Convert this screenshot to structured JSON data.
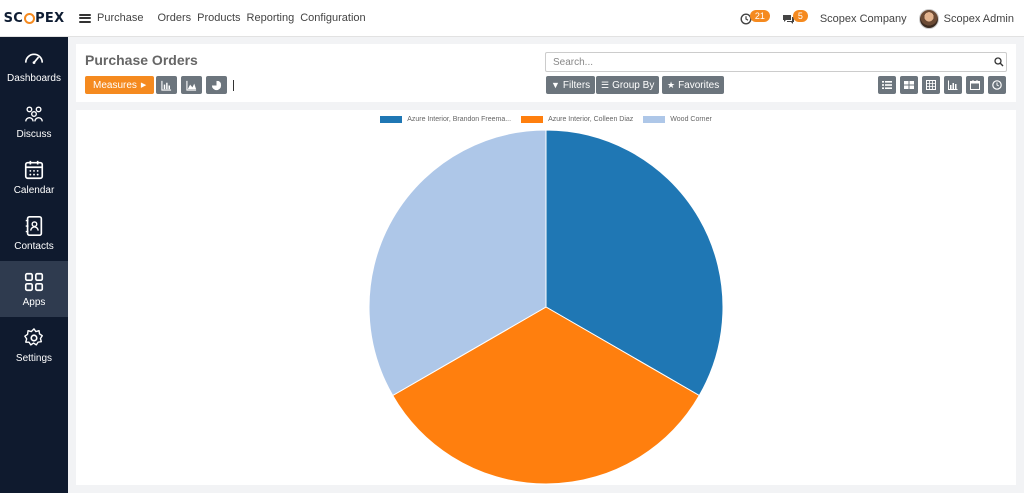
{
  "brand": {
    "logo_prefix": "SC",
    "logo_suffix": "PEX",
    "accent": "#f58a1f"
  },
  "nav": {
    "app_name": "Purchase",
    "menu": [
      "Orders",
      "Products",
      "Reporting",
      "Configuration"
    ]
  },
  "systray": {
    "activities_count": "21",
    "messages_count": "5",
    "company": "Scopex Company",
    "user": "Scopex Admin"
  },
  "sidebar": {
    "items": [
      {
        "label": "Dashboards",
        "icon": "gauge-icon"
      },
      {
        "label": "Discuss",
        "icon": "users-icon"
      },
      {
        "label": "Calendar",
        "icon": "calendar-icon"
      },
      {
        "label": "Contacts",
        "icon": "contact-book-icon"
      },
      {
        "label": "Apps",
        "icon": "grid-icon",
        "active": true
      },
      {
        "label": "Settings",
        "icon": "gear-icon"
      }
    ]
  },
  "control_panel": {
    "title": "Purchase Orders",
    "measures_label": "Measures",
    "search_placeholder": "Search...",
    "filters_label": "Filters",
    "group_by_label": "Group By",
    "favorites_label": "Favorites"
  },
  "chart_data": {
    "type": "pie",
    "categories": [
      "Azure Interior, Brandon Freema...",
      "Azure Interior, Colleen Diaz",
      "Wood Corner"
    ],
    "values": [
      1,
      1,
      1
    ],
    "colors": [
      "#1f77b4",
      "#ff7f0e",
      "#aec7e8"
    ],
    "legend_position": "top"
  }
}
